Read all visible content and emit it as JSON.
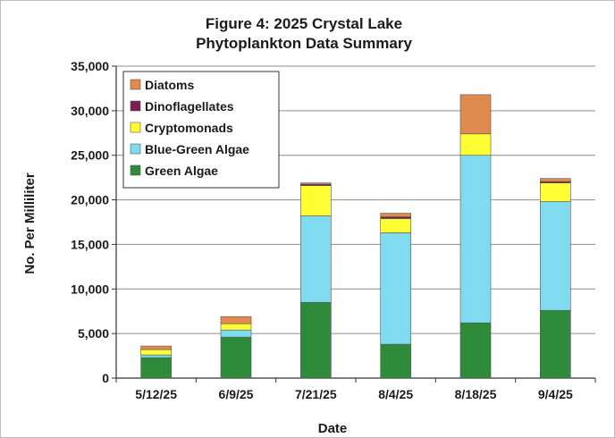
{
  "chart_data": {
    "type": "bar",
    "stacked": true,
    "title": "Figure 4: 2025 Crystal Lake",
    "subtitle": "Phytoplankton Data Summary",
    "xlabel": "Date",
    "ylabel": "No. Per Milliliter",
    "ylim": [
      0,
      35000
    ],
    "yticks": [
      0,
      5000,
      10000,
      15000,
      20000,
      25000,
      30000,
      35000
    ],
    "ytick_labels": [
      "0",
      "5,000",
      "10,000",
      "15,000",
      "20,000",
      "25,000",
      "30,000",
      "35,000"
    ],
    "categories": [
      "5/12/25",
      "6/9/25",
      "7/21/25",
      "8/4/25",
      "8/18/25",
      "9/4/25"
    ],
    "series": [
      {
        "name": "Green Algae",
        "color": "#2e8b3a",
        "values": [
          2300,
          4600,
          8500,
          3800,
          6200,
          7600
        ]
      },
      {
        "name": "Blue-Green Algae",
        "color": "#7fdcf0",
        "values": [
          300,
          800,
          9700,
          12500,
          18800,
          12200
        ]
      },
      {
        "name": "Cryptomonads",
        "color": "#ffff33",
        "values": [
          600,
          700,
          3400,
          1600,
          2400,
          2100
        ]
      },
      {
        "name": "Dinoflagellates",
        "color": "#7a1f4f",
        "values": [
          0,
          0,
          150,
          200,
          0,
          150
        ]
      },
      {
        "name": "Diatoms",
        "color": "#e08a4f",
        "values": [
          400,
          800,
          150,
          400,
          4400,
          350
        ]
      }
    ],
    "legend_order": [
      "Diatoms",
      "Dinoflagellates",
      "Cryptomonads",
      "Blue-Green Algae",
      "Green Algae"
    ],
    "grid": true,
    "legend_position": "top-left"
  }
}
